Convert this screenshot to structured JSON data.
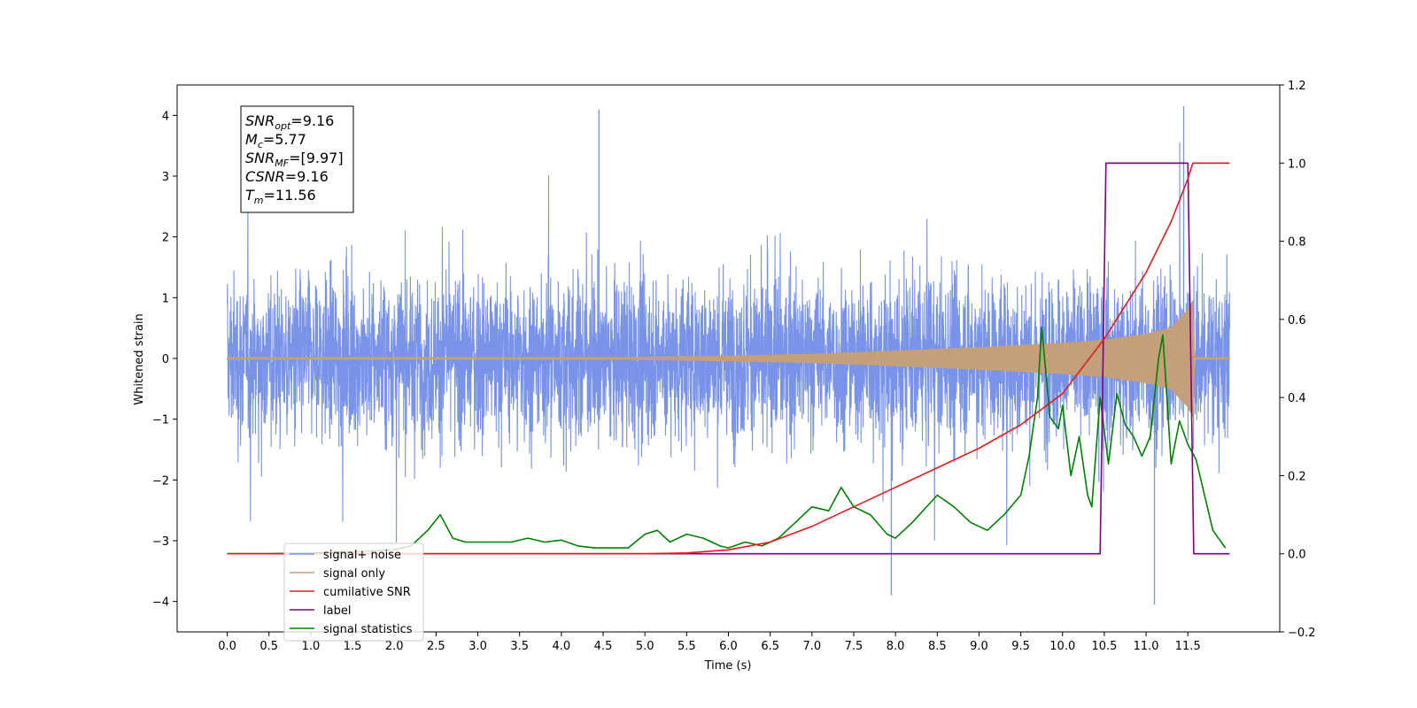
{
  "chart_data": {
    "type": "line",
    "xlabel": "Time (s)",
    "ylabel": "Whitened strain",
    "xlim": [
      -0.6,
      12.6
    ],
    "ylim": [
      -4.5,
      4.5
    ],
    "y2lim": [
      -0.2,
      1.2
    ],
    "xticks": [
      "0.0",
      "0.5",
      "1.0",
      "1.5",
      "2.0",
      "2.5",
      "3.0",
      "3.5",
      "4.0",
      "4.5",
      "5.0",
      "5.5",
      "6.0",
      "6.5",
      "7.0",
      "7.5",
      "8.0",
      "8.5",
      "9.0",
      "9.5",
      "10.0",
      "10.5",
      "11.0",
      "11.5"
    ],
    "yticks": [
      "4",
      "3",
      "2",
      "1",
      "0",
      "−1",
      "−2",
      "−3",
      "−4"
    ],
    "y2ticks": [
      "1.2",
      "1.0",
      "0.8",
      "0.6",
      "0.4",
      "0.2",
      "0.0",
      "−0.2"
    ],
    "grid": false,
    "legend_position": "bottom-left",
    "colors": {
      "signal_noise": "#7893e8",
      "signal_only": "#c4a07a",
      "cumulative_snr": "#e41a1c",
      "label": "#800080",
      "signal_statistics": "#008000"
    },
    "series": [
      {
        "name": "signal+ noise",
        "axis": "left",
        "description_points": {
          "t_start": 0.0,
          "t_end": 12.0,
          "noise_amplitude_typical": 1.8,
          "peak_values": [
            [
              4.45,
              4.1
            ],
            [
              11.45,
              4.15
            ],
            [
              11.1,
              -4.05
            ],
            [
              7.95,
              -3.9
            ]
          ]
        }
      },
      {
        "name": "signal only",
        "axis": "left",
        "envelope": {
          "t": [
            0.0,
            5.0,
            6.0,
            7.0,
            8.0,
            9.0,
            10.0,
            10.5,
            11.0,
            11.3,
            11.5,
            11.56,
            11.57,
            12.0
          ],
          "amp": [
            0.0,
            0.02,
            0.04,
            0.07,
            0.12,
            0.18,
            0.25,
            0.3,
            0.4,
            0.5,
            0.8,
            0.95,
            0.0,
            0.0
          ]
        }
      },
      {
        "name": "cumilative SNR",
        "axis": "right",
        "t": [
          0.0,
          5.0,
          5.5,
          6.0,
          6.5,
          7.0,
          7.5,
          8.0,
          8.5,
          9.0,
          9.5,
          10.0,
          10.5,
          11.0,
          11.3,
          11.5,
          11.56,
          12.0
        ],
        "values": [
          0.0,
          0.0,
          0.002,
          0.01,
          0.03,
          0.07,
          0.12,
          0.17,
          0.22,
          0.27,
          0.33,
          0.41,
          0.55,
          0.72,
          0.85,
          0.96,
          1.0,
          1.0
        ]
      },
      {
        "name": "label",
        "axis": "right",
        "t": [
          0.0,
          10.45,
          10.52,
          11.5,
          11.57,
          12.0
        ],
        "values": [
          0.0,
          0.0,
          1.0,
          1.0,
          0.0,
          0.0
        ]
      },
      {
        "name": "signal statistics",
        "axis": "right",
        "t": [
          0.0,
          0.5,
          1.0,
          1.5,
          2.0,
          2.2,
          2.4,
          2.55,
          2.7,
          2.85,
          3.0,
          3.2,
          3.4,
          3.6,
          3.8,
          4.0,
          4.2,
          4.4,
          4.6,
          4.8,
          5.0,
          5.15,
          5.3,
          5.5,
          5.7,
          5.9,
          6.0,
          6.2,
          6.4,
          6.6,
          6.8,
          7.0,
          7.2,
          7.35,
          7.5,
          7.7,
          7.9,
          8.0,
          8.2,
          8.5,
          8.7,
          8.9,
          9.1,
          9.3,
          9.5,
          9.6,
          9.7,
          9.75,
          9.85,
          9.95,
          10.0,
          10.1,
          10.2,
          10.3,
          10.35,
          10.45,
          10.55,
          10.65,
          10.75,
          10.85,
          10.95,
          11.05,
          11.15,
          11.2,
          11.3,
          11.4,
          11.5,
          11.6,
          11.7,
          11.8,
          11.95
        ],
        "values": [
          0.0,
          0.0,
          0.002,
          0.005,
          0.01,
          0.02,
          0.06,
          0.1,
          0.04,
          0.03,
          0.03,
          0.03,
          0.03,
          0.04,
          0.03,
          0.035,
          0.02,
          0.015,
          0.015,
          0.015,
          0.05,
          0.06,
          0.03,
          0.05,
          0.04,
          0.02,
          0.015,
          0.03,
          0.02,
          0.04,
          0.08,
          0.12,
          0.11,
          0.17,
          0.12,
          0.1,
          0.05,
          0.04,
          0.08,
          0.15,
          0.12,
          0.08,
          0.06,
          0.1,
          0.15,
          0.25,
          0.4,
          0.58,
          0.35,
          0.32,
          0.38,
          0.2,
          0.3,
          0.15,
          0.12,
          0.4,
          0.23,
          0.41,
          0.33,
          0.3,
          0.25,
          0.3,
          0.5,
          0.56,
          0.23,
          0.34,
          0.28,
          0.24,
          0.15,
          0.06,
          0.015
        ]
      }
    ],
    "stats_box": [
      {
        "name": "SNR",
        "sub": "opt",
        "value": "=9.16"
      },
      {
        "name": "M",
        "sub": "c",
        "value": "=5.77"
      },
      {
        "name": "SNR",
        "sub": "MF",
        "value": "=[9.97]"
      },
      {
        "name": "CSNR",
        "sub": "",
        "value": "=9.16"
      },
      {
        "name": "T",
        "sub": "m",
        "value": "=11.56"
      }
    ],
    "legend": [
      {
        "label": "signal+ noise",
        "key": "signal_noise"
      },
      {
        "label": "signal only",
        "key": "signal_only"
      },
      {
        "label": "cumilative SNR",
        "key": "cumulative_snr"
      },
      {
        "label": "label",
        "key": "label"
      },
      {
        "label": "signal statistics",
        "key": "signal_statistics"
      }
    ]
  }
}
